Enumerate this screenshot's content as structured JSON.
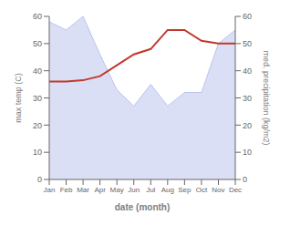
{
  "chart_data": {
    "type": "line",
    "xlabel": "date (month)",
    "ylabel": "max temp (C)",
    "y2label": "med. precipitation (kg/m2)",
    "categories": [
      "Jan",
      "Feb",
      "Mar",
      "Apr",
      "May",
      "Jun",
      "Jul",
      "Aug",
      "Sep",
      "Oct",
      "Nov",
      "Dec"
    ],
    "series": [
      {
        "type": "area",
        "axis": "y2",
        "color": "#b0b8e8",
        "values": [
          58,
          55,
          60,
          46,
          33,
          27,
          35,
          27,
          32,
          32,
          50,
          55
        ]
      },
      {
        "type": "line",
        "axis": "y",
        "color": "#c0392b",
        "values": [
          36,
          36,
          36.5,
          38,
          42,
          46,
          48,
          55,
          55,
          51,
          50,
          50
        ]
      }
    ],
    "ylim": [
      0,
      60
    ],
    "yticks": [
      0,
      10,
      20,
      30,
      40,
      50,
      60
    ],
    "y2lim": [
      0,
      60
    ],
    "y2ticks": [
      0,
      10,
      20,
      30,
      40,
      50,
      60
    ],
    "grid": false
  }
}
